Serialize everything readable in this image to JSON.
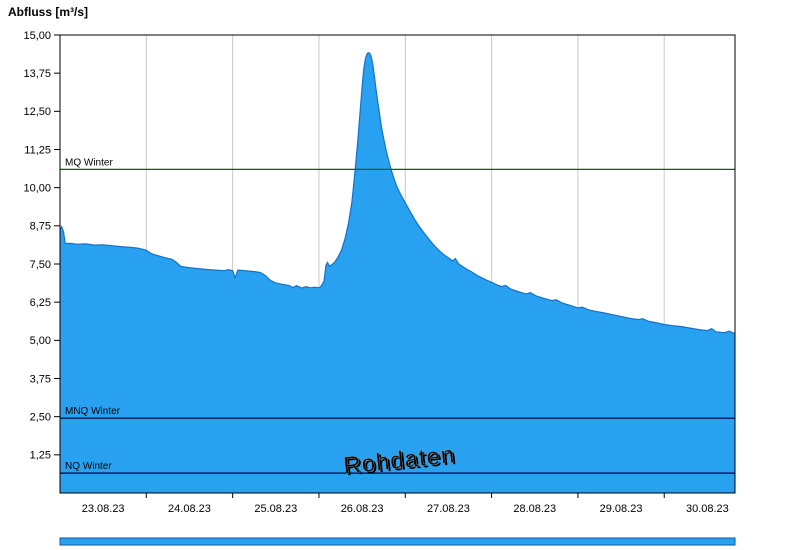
{
  "title": "Abfluss [m³/s]",
  "watermark": "Rohdaten",
  "chart_data": {
    "type": "area",
    "title": "Abfluss [m³/s]",
    "ylabel": "Abfluss [m³/s]",
    "xlabel": "",
    "ylim": [
      0,
      15
    ],
    "x_domain_days": [
      0,
      7.82
    ],
    "grid": "vertical-day-boundaries",
    "legend": "none",
    "y_ticks": [
      {
        "v": 1.25,
        "label": "1,25"
      },
      {
        "v": 2.5,
        "label": "2,50"
      },
      {
        "v": 3.75,
        "label": "3,75"
      },
      {
        "v": 5.0,
        "label": "5,00"
      },
      {
        "v": 6.25,
        "label": "6,25"
      },
      {
        "v": 7.5,
        "label": "7,50"
      },
      {
        "v": 8.75,
        "label": "8,75"
      },
      {
        "v": 10.0,
        "label": "10,00"
      },
      {
        "v": 11.25,
        "label": "11,25"
      },
      {
        "v": 12.5,
        "label": "12,50"
      },
      {
        "v": 13.75,
        "label": "13,75"
      },
      {
        "v": 15.0,
        "label": "15,00"
      }
    ],
    "x_ticks": [
      "23.08.23",
      "24.08.23",
      "25.08.23",
      "26.08.23",
      "27.08.23",
      "28.08.23",
      "29.08.23",
      "30.08.23"
    ],
    "reference_lines": [
      {
        "label": "MQ Winter",
        "value": 10.6,
        "color": "#006600"
      },
      {
        "label": "MNQ Winter",
        "value": 2.45,
        "color": "#000040"
      },
      {
        "label": "NQ Winter",
        "value": 0.65,
        "color": "#000040"
      }
    ],
    "colors": {
      "grid": "#C8C8C8",
      "border": "#000000",
      "watermark_fill": "#ECECEC",
      "watermark_shadow": "#666666",
      "coverage_bar_fill": "#29A1F1",
      "coverage_bar_stroke": "#0A5AA0"
    },
    "series": [
      {
        "name": "Rohdaten",
        "fill": "#29A1F1",
        "stroke": "#1670C8",
        "points": [
          [
            0.0,
            8.62
          ],
          [
            0.02,
            8.72
          ],
          [
            0.04,
            8.55
          ],
          [
            0.06,
            8.18
          ],
          [
            0.12,
            8.17
          ],
          [
            0.2,
            8.15
          ],
          [
            0.3,
            8.16
          ],
          [
            0.4,
            8.12
          ],
          [
            0.5,
            8.13
          ],
          [
            0.6,
            8.1
          ],
          [
            0.7,
            8.07
          ],
          [
            0.8,
            8.05
          ],
          [
            0.9,
            8.02
          ],
          [
            0.96,
            7.98
          ],
          [
            1.0,
            7.95
          ],
          [
            1.05,
            7.85
          ],
          [
            1.1,
            7.8
          ],
          [
            1.2,
            7.72
          ],
          [
            1.3,
            7.65
          ],
          [
            1.35,
            7.55
          ],
          [
            1.4,
            7.42
          ],
          [
            1.5,
            7.38
          ],
          [
            1.6,
            7.35
          ],
          [
            1.7,
            7.32
          ],
          [
            1.8,
            7.3
          ],
          [
            1.9,
            7.28
          ],
          [
            1.95,
            7.31
          ],
          [
            2.0,
            7.28
          ],
          [
            2.03,
            7.05
          ],
          [
            2.06,
            7.3
          ],
          [
            2.15,
            7.28
          ],
          [
            2.25,
            7.25
          ],
          [
            2.32,
            7.22
          ],
          [
            2.38,
            7.12
          ],
          [
            2.44,
            6.96
          ],
          [
            2.5,
            6.88
          ],
          [
            2.58,
            6.83
          ],
          [
            2.65,
            6.8
          ],
          [
            2.7,
            6.73
          ],
          [
            2.74,
            6.79
          ],
          [
            2.8,
            6.71
          ],
          [
            2.85,
            6.76
          ],
          [
            2.9,
            6.72
          ],
          [
            2.95,
            6.74
          ],
          [
            3.0,
            6.72
          ],
          [
            3.03,
            6.79
          ],
          [
            3.06,
            6.95
          ],
          [
            3.08,
            7.45
          ],
          [
            3.1,
            7.55
          ],
          [
            3.12,
            7.42
          ],
          [
            3.15,
            7.48
          ],
          [
            3.18,
            7.55
          ],
          [
            3.22,
            7.72
          ],
          [
            3.26,
            7.95
          ],
          [
            3.3,
            8.3
          ],
          [
            3.34,
            8.8
          ],
          [
            3.38,
            9.5
          ],
          [
            3.41,
            10.3
          ],
          [
            3.44,
            11.2
          ],
          [
            3.46,
            11.9
          ],
          [
            3.48,
            12.6
          ],
          [
            3.5,
            13.3
          ],
          [
            3.52,
            13.9
          ],
          [
            3.54,
            14.25
          ],
          [
            3.56,
            14.4
          ],
          [
            3.58,
            14.42
          ],
          [
            3.6,
            14.35
          ],
          [
            3.62,
            14.1
          ],
          [
            3.64,
            13.7
          ],
          [
            3.66,
            13.25
          ],
          [
            3.68,
            12.85
          ],
          [
            3.7,
            12.45
          ],
          [
            3.72,
            12.05
          ],
          [
            3.75,
            11.6
          ],
          [
            3.78,
            11.2
          ],
          [
            3.81,
            10.85
          ],
          [
            3.84,
            10.55
          ],
          [
            3.87,
            10.3
          ],
          [
            3.9,
            10.05
          ],
          [
            3.95,
            9.75
          ],
          [
            4.0,
            9.5
          ],
          [
            4.05,
            9.25
          ],
          [
            4.1,
            9.0
          ],
          [
            4.15,
            8.78
          ],
          [
            4.2,
            8.58
          ],
          [
            4.25,
            8.4
          ],
          [
            4.3,
            8.22
          ],
          [
            4.35,
            8.06
          ],
          [
            4.4,
            7.92
          ],
          [
            4.45,
            7.8
          ],
          [
            4.5,
            7.7
          ],
          [
            4.55,
            7.6
          ],
          [
            4.58,
            7.68
          ],
          [
            4.62,
            7.5
          ],
          [
            4.7,
            7.35
          ],
          [
            4.78,
            7.22
          ],
          [
            4.85,
            7.1
          ],
          [
            4.92,
            7.0
          ],
          [
            5.0,
            6.9
          ],
          [
            5.06,
            6.82
          ],
          [
            5.12,
            6.76
          ],
          [
            5.16,
            6.8
          ],
          [
            5.22,
            6.68
          ],
          [
            5.3,
            6.6
          ],
          [
            5.4,
            6.52
          ],
          [
            5.45,
            6.56
          ],
          [
            5.52,
            6.45
          ],
          [
            5.6,
            6.38
          ],
          [
            5.7,
            6.3
          ],
          [
            5.75,
            6.33
          ],
          [
            5.82,
            6.22
          ],
          [
            5.9,
            6.15
          ],
          [
            6.0,
            6.06
          ],
          [
            6.05,
            6.09
          ],
          [
            6.12,
            6.0
          ],
          [
            6.2,
            5.95
          ],
          [
            6.3,
            5.9
          ],
          [
            6.4,
            5.84
          ],
          [
            6.5,
            5.78
          ],
          [
            6.6,
            5.72
          ],
          [
            6.7,
            5.68
          ],
          [
            6.75,
            5.71
          ],
          [
            6.82,
            5.62
          ],
          [
            6.9,
            5.58
          ],
          [
            7.0,
            5.52
          ],
          [
            7.1,
            5.48
          ],
          [
            7.2,
            5.45
          ],
          [
            7.3,
            5.4
          ],
          [
            7.4,
            5.35
          ],
          [
            7.5,
            5.32
          ],
          [
            7.55,
            5.38
          ],
          [
            7.6,
            5.28
          ],
          [
            7.7,
            5.25
          ],
          [
            7.75,
            5.3
          ],
          [
            7.82,
            5.22
          ]
        ]
      }
    ]
  }
}
